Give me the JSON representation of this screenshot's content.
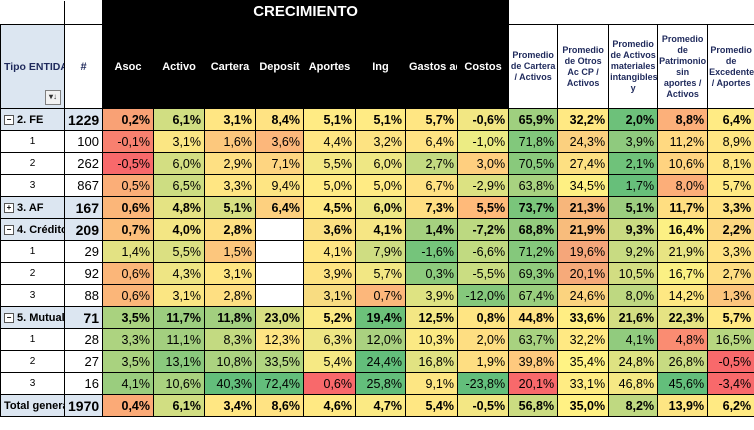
{
  "header": {
    "crecimiento_title": "CRECIMIENTO",
    "tipo_label": "Tipo ENTIDAD",
    "hash_label": "#",
    "growth_cols": [
      "Asoc",
      "Activo",
      "Cartera",
      "Deposit",
      "Aportes",
      "Ing",
      "Gastos admon",
      "Costos"
    ],
    "ratio_cols": [
      "Promedio de Cartera / Activos",
      "Promedio de Otros Ac CP / Activos",
      "Promedio de Activos materiales intangibles y",
      "Promedio de Patrimonio sin aportes / Activos",
      "Promedio de Excedente / Aportes"
    ],
    "filter_icon_glyph": "▾↓"
  },
  "colors": {
    "red": "#f8696b",
    "orange": "#fba276",
    "lightorange": "#fcc77d",
    "yellow": "#ffeb84",
    "lightgreen": "#d8e082",
    "green": "#b1d580",
    "darkgreen": "#7cc67b",
    "grpbg": "#dce6f1"
  },
  "rows": [
    {
      "label": "2. FE",
      "count": "1229",
      "kind": "grp",
      "expander": "−",
      "cells": [
        [
          "0,2%",
          "#f9a175"
        ],
        [
          "6,1%",
          "#d1de82"
        ],
        [
          "3,1%",
          "#ffe683"
        ],
        [
          "8,4%",
          "#ffe383"
        ],
        [
          "5,1%",
          "#ffeb84"
        ],
        [
          "5,1%",
          "#ffeb84"
        ],
        [
          "5,7%",
          "#ffe683"
        ],
        [
          "-0,6%",
          "#f2e783"
        ],
        [
          "65,9%",
          "#9fcf7f"
        ],
        [
          "32,2%",
          "#ffe983"
        ],
        [
          "2,0%",
          "#6dc17a"
        ],
        [
          "8,8%",
          "#fcb07a"
        ],
        [
          "6,4%",
          "#ffeb84"
        ]
      ]
    },
    {
      "label": "1",
      "count": "100",
      "kind": "sub",
      "cells": [
        [
          "-0,1%",
          "#f8806f"
        ],
        [
          "3,1%",
          "#fbe683"
        ],
        [
          "1,6%",
          "#fcc87d"
        ],
        [
          "3,6%",
          "#fcb77b"
        ],
        [
          "4,4%",
          "#ffe683"
        ],
        [
          "3,2%",
          "#fde382"
        ],
        [
          "6,4%",
          "#ffe383"
        ],
        [
          "-1,0%",
          "#ecec84"
        ],
        [
          "71,8%",
          "#82c87c"
        ],
        [
          "24,3%",
          "#fbd07f"
        ],
        [
          "3,9%",
          "#8fca7e"
        ],
        [
          "11,2%",
          "#ffd981"
        ],
        [
          "8,9%",
          "#ffe683"
        ]
      ]
    },
    {
      "label": "2",
      "count": "262",
      "kind": "sub",
      "cells": [
        [
          "-0,5%",
          "#f8696b"
        ],
        [
          "6,0%",
          "#d3de82"
        ],
        [
          "2,9%",
          "#fee083"
        ],
        [
          "7,1%",
          "#fed581"
        ],
        [
          "5,5%",
          "#f4e884"
        ],
        [
          "6,0%",
          "#eee784"
        ],
        [
          "2,7%",
          "#c3da81"
        ],
        [
          "3,0%",
          "#ffcf7f"
        ],
        [
          "70,5%",
          "#89c97c"
        ],
        [
          "27,4%",
          "#fde082"
        ],
        [
          "2,1%",
          "#6fc27a"
        ],
        [
          "10,6%",
          "#ffd380"
        ],
        [
          "8,1%",
          "#ffe683"
        ]
      ]
    },
    {
      "label": "3",
      "count": "867",
      "kind": "sub",
      "cells": [
        [
          "0,5%",
          "#fbae78"
        ],
        [
          "6,5%",
          "#cddd82"
        ],
        [
          "3,3%",
          "#ffe683"
        ],
        [
          "9,4%",
          "#fee583"
        ],
        [
          "5,0%",
          "#ffeb84"
        ],
        [
          "5,0%",
          "#ffeb84"
        ],
        [
          "6,7%",
          "#ffe183"
        ],
        [
          "-2,9%",
          "#dce282"
        ],
        [
          "63,8%",
          "#a8d280"
        ],
        [
          "34,5%",
          "#fef083"
        ],
        [
          "1,7%",
          "#67bf7a"
        ],
        [
          "8,0%",
          "#fcae79"
        ],
        [
          "5,7%",
          "#ffe983"
        ]
      ]
    },
    {
      "label": "3. AF",
      "count": "167",
      "kind": "grp",
      "expander": "+",
      "cells": [
        [
          "0,6%",
          "#fbb679"
        ],
        [
          "4,8%",
          "#e4e383"
        ],
        [
          "5,1%",
          "#d7df82"
        ],
        [
          "6,4%",
          "#fdd07f"
        ],
        [
          "4,5%",
          "#ffe983"
        ],
        [
          "6,0%",
          "#eee784"
        ],
        [
          "7,3%",
          "#ffde82"
        ],
        [
          "5,5%",
          "#ffba7a"
        ],
        [
          "73,7%",
          "#7ac57b"
        ],
        [
          "21,3%",
          "#f7b67b"
        ],
        [
          "5,1%",
          "#9ccd7f"
        ],
        [
          "11,7%",
          "#ffde81"
        ],
        [
          "3,3%",
          "#ffe283"
        ]
      ]
    },
    {
      "label": "4. Crédito",
      "count": "209",
      "kind": "grp",
      "expander": "−",
      "cells": [
        [
          "0,7%",
          "#fcbe7b"
        ],
        [
          "4,0%",
          "#f3e684"
        ],
        [
          "2,8%",
          "#fedf82"
        ],
        [
          "",
          "#ffffff"
        ],
        [
          "3,6%",
          "#fbe082"
        ],
        [
          "4,1%",
          "#f6e684"
        ],
        [
          "1,4%",
          "#a5d07f"
        ],
        [
          "-7,2%",
          "#bcd981"
        ],
        [
          "68,8%",
          "#93cb7e"
        ],
        [
          "21,9%",
          "#f8bc7c"
        ],
        [
          "9,3%",
          "#c9db82"
        ],
        [
          "16,4%",
          "#fcf084"
        ],
        [
          "2,2%",
          "#fdd881"
        ]
      ]
    },
    {
      "label": "1",
      "count": "29",
      "kind": "sub",
      "cells": [
        [
          "1,4%",
          "#e3e283"
        ],
        [
          "5,5%",
          "#dbe082"
        ],
        [
          "1,5%",
          "#fcc67d"
        ],
        [
          "",
          "#ffffff"
        ],
        [
          "4,1%",
          "#ffe683"
        ],
        [
          "7,9%",
          "#cfdd82"
        ],
        [
          "-1,6%",
          "#75c47b"
        ],
        [
          "-6,6%",
          "#c1da81"
        ],
        [
          "71,2%",
          "#85c87c"
        ],
        [
          "19,6%",
          "#f5a67a"
        ],
        [
          "9,2%",
          "#c8db82"
        ],
        [
          "21,9%",
          "#e8e483"
        ],
        [
          "3,3%",
          "#ffe283"
        ]
      ]
    },
    {
      "label": "2",
      "count": "92",
      "kind": "sub",
      "cells": [
        [
          "0,6%",
          "#fbb679"
        ],
        [
          "4,3%",
          "#eee584"
        ],
        [
          "3,1%",
          "#ffe683"
        ],
        [
          "",
          "#ffffff"
        ],
        [
          "3,9%",
          "#fee382"
        ],
        [
          "5,7%",
          "#f2e784"
        ],
        [
          "0,3%",
          "#8dcb7d"
        ],
        [
          "-5,5%",
          "#cadd82"
        ],
        [
          "69,3%",
          "#90cb7d"
        ],
        [
          "20,1%",
          "#f6aa7a"
        ],
        [
          "10,5%",
          "#d2dd82"
        ],
        [
          "16,7%",
          "#fbf084"
        ],
        [
          "2,7%",
          "#fedd82"
        ]
      ]
    },
    {
      "label": "3",
      "count": "88",
      "kind": "sub",
      "cells": [
        [
          "0,6%",
          "#fbb679"
        ],
        [
          "3,1%",
          "#fbe683"
        ],
        [
          "2,8%",
          "#fedf82"
        ],
        [
          "",
          "#ffffff"
        ],
        [
          "3,1%",
          "#f8dc81"
        ],
        [
          "0,7%",
          "#fcb77b"
        ],
        [
          "3,9%",
          "#dee382"
        ],
        [
          "-12,0%",
          "#85c87c"
        ],
        [
          "67,4%",
          "#99ce7e"
        ],
        [
          "24,6%",
          "#fbd37f"
        ],
        [
          "8,0%",
          "#bed881"
        ],
        [
          "14,2%",
          "#fee883"
        ],
        [
          "1,3%",
          "#fcc57d"
        ]
      ]
    },
    {
      "label": "5. Mutuales",
      "count": "71",
      "kind": "grp",
      "expander": "−",
      "cells": [
        [
          "3,5%",
          "#a9d27f"
        ],
        [
          "11,7%",
          "#9ccd7f"
        ],
        [
          "11,8%",
          "#a2cf7f"
        ],
        [
          "23,0%",
          "#d7df82"
        ],
        [
          "5,2%",
          "#fbea84"
        ],
        [
          "19,4%",
          "#6cc17a"
        ],
        [
          "12,5%",
          "#f3e784"
        ],
        [
          "0,8%",
          "#ffe583"
        ],
        [
          "44,8%",
          "#ffe383"
        ],
        [
          "33,6%",
          "#ffee83"
        ],
        [
          "21,6%",
          "#d3de82"
        ],
        [
          "22,3%",
          "#e5e383"
        ],
        [
          "5,7%",
          "#ffe983"
        ]
      ]
    },
    {
      "label": "1",
      "count": "28",
      "kind": "sub",
      "cells": [
        [
          "3,3%",
          "#add380"
        ],
        [
          "11,1%",
          "#a3cf7f"
        ],
        [
          "8,3%",
          "#c3da81"
        ],
        [
          "12,3%",
          "#fee583"
        ],
        [
          "6,3%",
          "#eee684"
        ],
        [
          "12,0%",
          "#aad180"
        ],
        [
          "10,3%",
          "#fbe984"
        ],
        [
          "2,0%",
          "#fede82"
        ],
        [
          "63,7%",
          "#a8d280"
        ],
        [
          "32,2%",
          "#ffe983"
        ],
        [
          "4,1%",
          "#91cb7e"
        ],
        [
          "4,8%",
          "#fa8c72"
        ],
        [
          "16,5%",
          "#b7d680"
        ]
      ]
    },
    {
      "label": "2",
      "count": "27",
      "kind": "sub",
      "cells": [
        [
          "3,5%",
          "#a9d27f"
        ],
        [
          "13,1%",
          "#8ac97d"
        ],
        [
          "10,8%",
          "#abd280"
        ],
        [
          "33,5%",
          "#b1d580"
        ],
        [
          "5,4%",
          "#f6e984"
        ],
        [
          "24,4%",
          "#63be7b"
        ],
        [
          "16,8%",
          "#e1e282"
        ],
        [
          "1,9%",
          "#fede82"
        ],
        [
          "39,8%",
          "#fec97e"
        ],
        [
          "35,4%",
          "#fff384"
        ],
        [
          "24,8%",
          "#dee282"
        ],
        [
          "26,8%",
          "#c7db82"
        ],
        [
          "-0,5%",
          "#f8696b"
        ]
      ]
    },
    {
      "label": "3",
      "count": "16",
      "kind": "sub",
      "cells": [
        [
          "4,1%",
          "#9acd7e"
        ],
        [
          "10,6%",
          "#a9d27f"
        ],
        [
          "40,3%",
          "#63be7b"
        ],
        [
          "72,4%",
          "#63be7b"
        ],
        [
          "0,6%",
          "#f8696b"
        ],
        [
          "25,8%",
          "#63be7b"
        ],
        [
          "9,1%",
          "#fde683"
        ],
        [
          "-23,8%",
          "#63be7b"
        ],
        [
          "20,1%",
          "#f8696b"
        ],
        [
          "33,1%",
          "#ffec83"
        ],
        [
          "46,8%",
          "#f5e884"
        ],
        [
          "45,6%",
          "#63be7b"
        ],
        [
          "-3,4%",
          "#f8696b"
        ]
      ]
    },
    {
      "label": "Total general",
      "count": "1970",
      "kind": "tot",
      "cells": [
        [
          "0,4%",
          "#fbaa77"
        ],
        [
          "6,1%",
          "#d1de82"
        ],
        [
          "3,4%",
          "#ffe783"
        ],
        [
          "8,6%",
          "#ffe383"
        ],
        [
          "4,6%",
          "#ffe983"
        ],
        [
          "4,7%",
          "#fbea84"
        ],
        [
          "5,4%",
          "#ffe783"
        ],
        [
          "-0,5%",
          "#f3e784"
        ],
        [
          "56,8%",
          "#cbdc81"
        ],
        [
          "35,0%",
          "#fff184"
        ],
        [
          "8,2%",
          "#bfd981"
        ],
        [
          "13,9%",
          "#fde583"
        ],
        [
          "6,2%",
          "#ffea83"
        ]
      ]
    }
  ]
}
